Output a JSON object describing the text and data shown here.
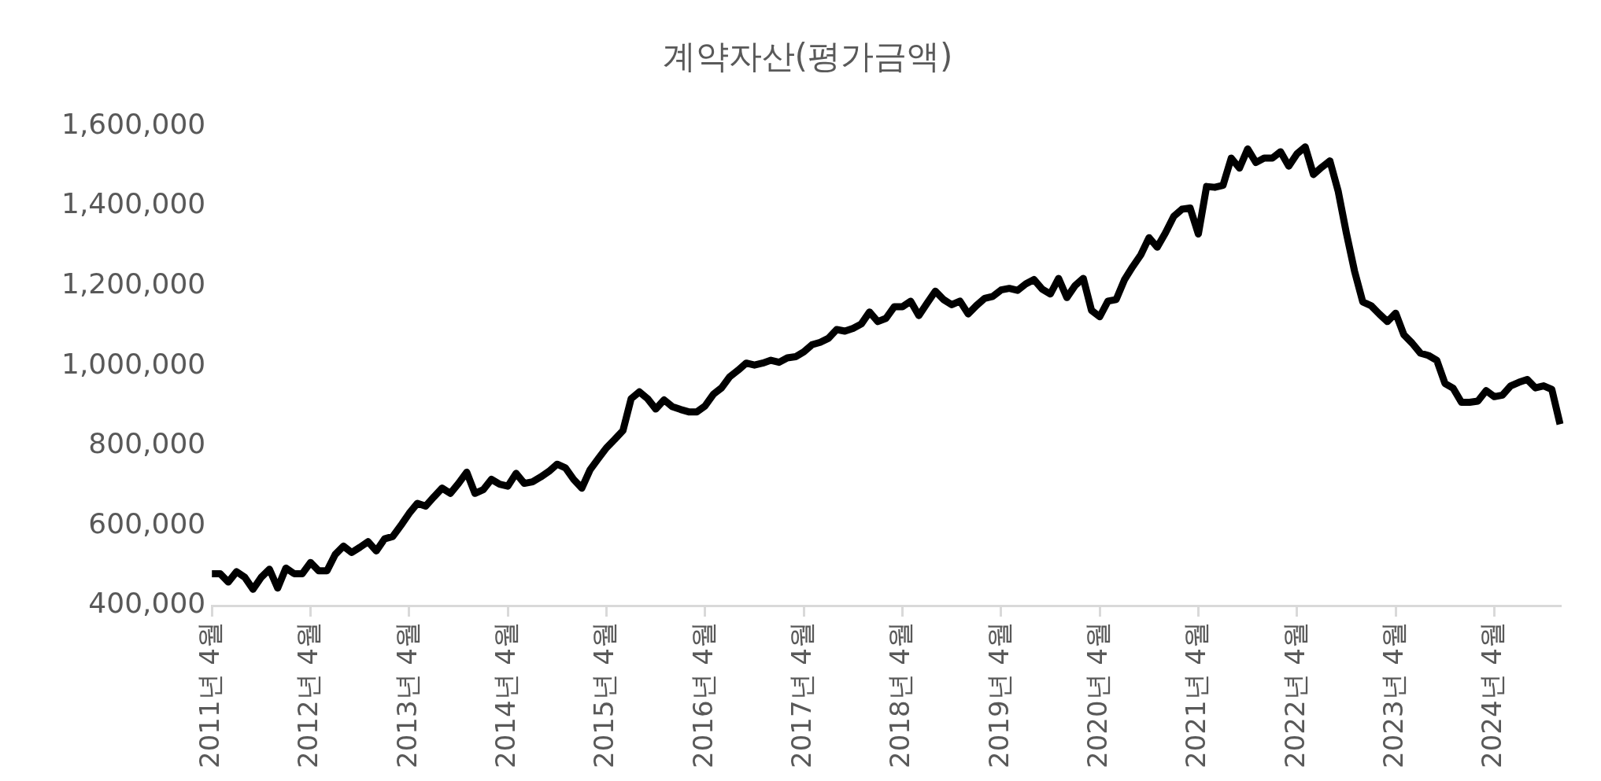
{
  "chart_data": {
    "type": "line",
    "title": "계약자산(평가금액)",
    "categories": [
      "2011년 4월",
      null,
      null,
      null,
      null,
      null,
      null,
      null,
      null,
      null,
      null,
      null,
      "2012년 4월",
      null,
      null,
      null,
      null,
      null,
      null,
      null,
      null,
      null,
      null,
      null,
      "2013년 4월",
      null,
      null,
      null,
      null,
      null,
      null,
      null,
      null,
      null,
      null,
      null,
      "2014년 4월",
      null,
      null,
      null,
      null,
      null,
      null,
      null,
      null,
      null,
      null,
      null,
      "2015년 4월",
      null,
      null,
      null,
      null,
      null,
      null,
      null,
      null,
      null,
      null,
      null,
      "2016년 4월",
      null,
      null,
      null,
      null,
      null,
      null,
      null,
      null,
      null,
      null,
      null,
      "2017년 4월",
      null,
      null,
      null,
      null,
      null,
      null,
      null,
      null,
      null,
      null,
      null,
      "2018년 4월",
      null,
      null,
      null,
      null,
      null,
      null,
      null,
      null,
      null,
      null,
      null,
      "2019년 4월",
      null,
      null,
      null,
      null,
      null,
      null,
      null,
      null,
      null,
      null,
      null,
      "2020년 4월",
      null,
      null,
      null,
      null,
      null,
      null,
      null,
      null,
      null,
      null,
      null,
      "2021년 4월",
      null,
      null,
      null,
      null,
      null,
      null,
      null,
      null,
      null,
      null,
      null,
      "2022년 4월",
      null,
      null,
      null,
      null,
      null,
      null,
      null,
      null,
      null,
      null,
      null,
      "2023년 4월",
      null,
      null,
      null,
      null,
      null,
      null,
      null,
      null,
      null,
      null,
      null,
      "2024년 4월",
      null,
      null,
      null,
      null,
      null,
      null,
      null,
      null
    ],
    "series": [
      {
        "color": "#000000",
        "values": [
          480000,
          480000,
          459000,
          485000,
          471000,
          441000,
          471000,
          491000,
          444000,
          494000,
          480000,
          480000,
          508000,
          487000,
          487000,
          528000,
          549000,
          533000,
          546000,
          560000,
          537000,
          567000,
          573000,
          601000,
          631000,
          656000,
          649000,
          672000,
          694000,
          681000,
          706000,
          734000,
          681000,
          690000,
          716000,
          704000,
          699000,
          731000,
          706000,
          710000,
          722000,
          736000,
          754000,
          745000,
          716000,
          694000,
          740000,
          768000,
          795000,
          816000,
          838000,
          918000,
          935000,
          918000,
          892000,
          915000,
          898000,
          891000,
          885000,
          885000,
          900000,
          929000,
          945000,
          973000,
          989000,
          1007000,
          1002000,
          1007000,
          1014000,
          1009000,
          1020000,
          1023000,
          1035000,
          1053000,
          1059000,
          1069000,
          1091000,
          1087000,
          1094000,
          1105000,
          1135000,
          1111000,
          1119000,
          1148000,
          1148000,
          1162000,
          1126000,
          1157000,
          1187000,
          1166000,
          1153000,
          1162000,
          1130000,
          1151000,
          1169000,
          1174000,
          1190000,
          1194000,
          1189000,
          1205000,
          1216000,
          1192000,
          1180000,
          1219000,
          1171000,
          1201000,
          1219000,
          1139000,
          1123000,
          1162000,
          1166000,
          1215000,
          1248000,
          1278000,
          1321000,
          1297000,
          1333000,
          1374000,
          1392000,
          1395000,
          1330000,
          1449000,
          1447000,
          1452000,
          1520000,
          1495000,
          1543000,
          1509000,
          1520000,
          1520000,
          1536000,
          1500000,
          1531000,
          1548000,
          1479000,
          1497000,
          1513000,
          1438000,
          1333000,
          1237000,
          1160000,
          1151000,
          1130000,
          1111000,
          1132000,
          1078000,
          1057000,
          1032000,
          1026000,
          1014000,
          956000,
          944000,
          909000,
          909000,
          912000,
          938000,
          923000,
          927000,
          950000,
          959000,
          966000,
          945000,
          950000,
          941000,
          854000
        ]
      }
    ],
    "ylim": [
      400000,
      1600000
    ],
    "yticks": [
      {
        "value": 400000,
        "label": "400,000"
      },
      {
        "value": 600000,
        "label": "600,000"
      },
      {
        "value": 800000,
        "label": "800,000"
      },
      {
        "value": 1000000,
        "label": "1,000,000"
      },
      {
        "value": 1200000,
        "label": "1,200,000"
      },
      {
        "value": 1400000,
        "label": "1,400,000"
      },
      {
        "value": 1600000,
        "label": "1,600,000"
      }
    ],
    "marker": "none",
    "line_style": "solid",
    "legend": false,
    "grid": false
  }
}
